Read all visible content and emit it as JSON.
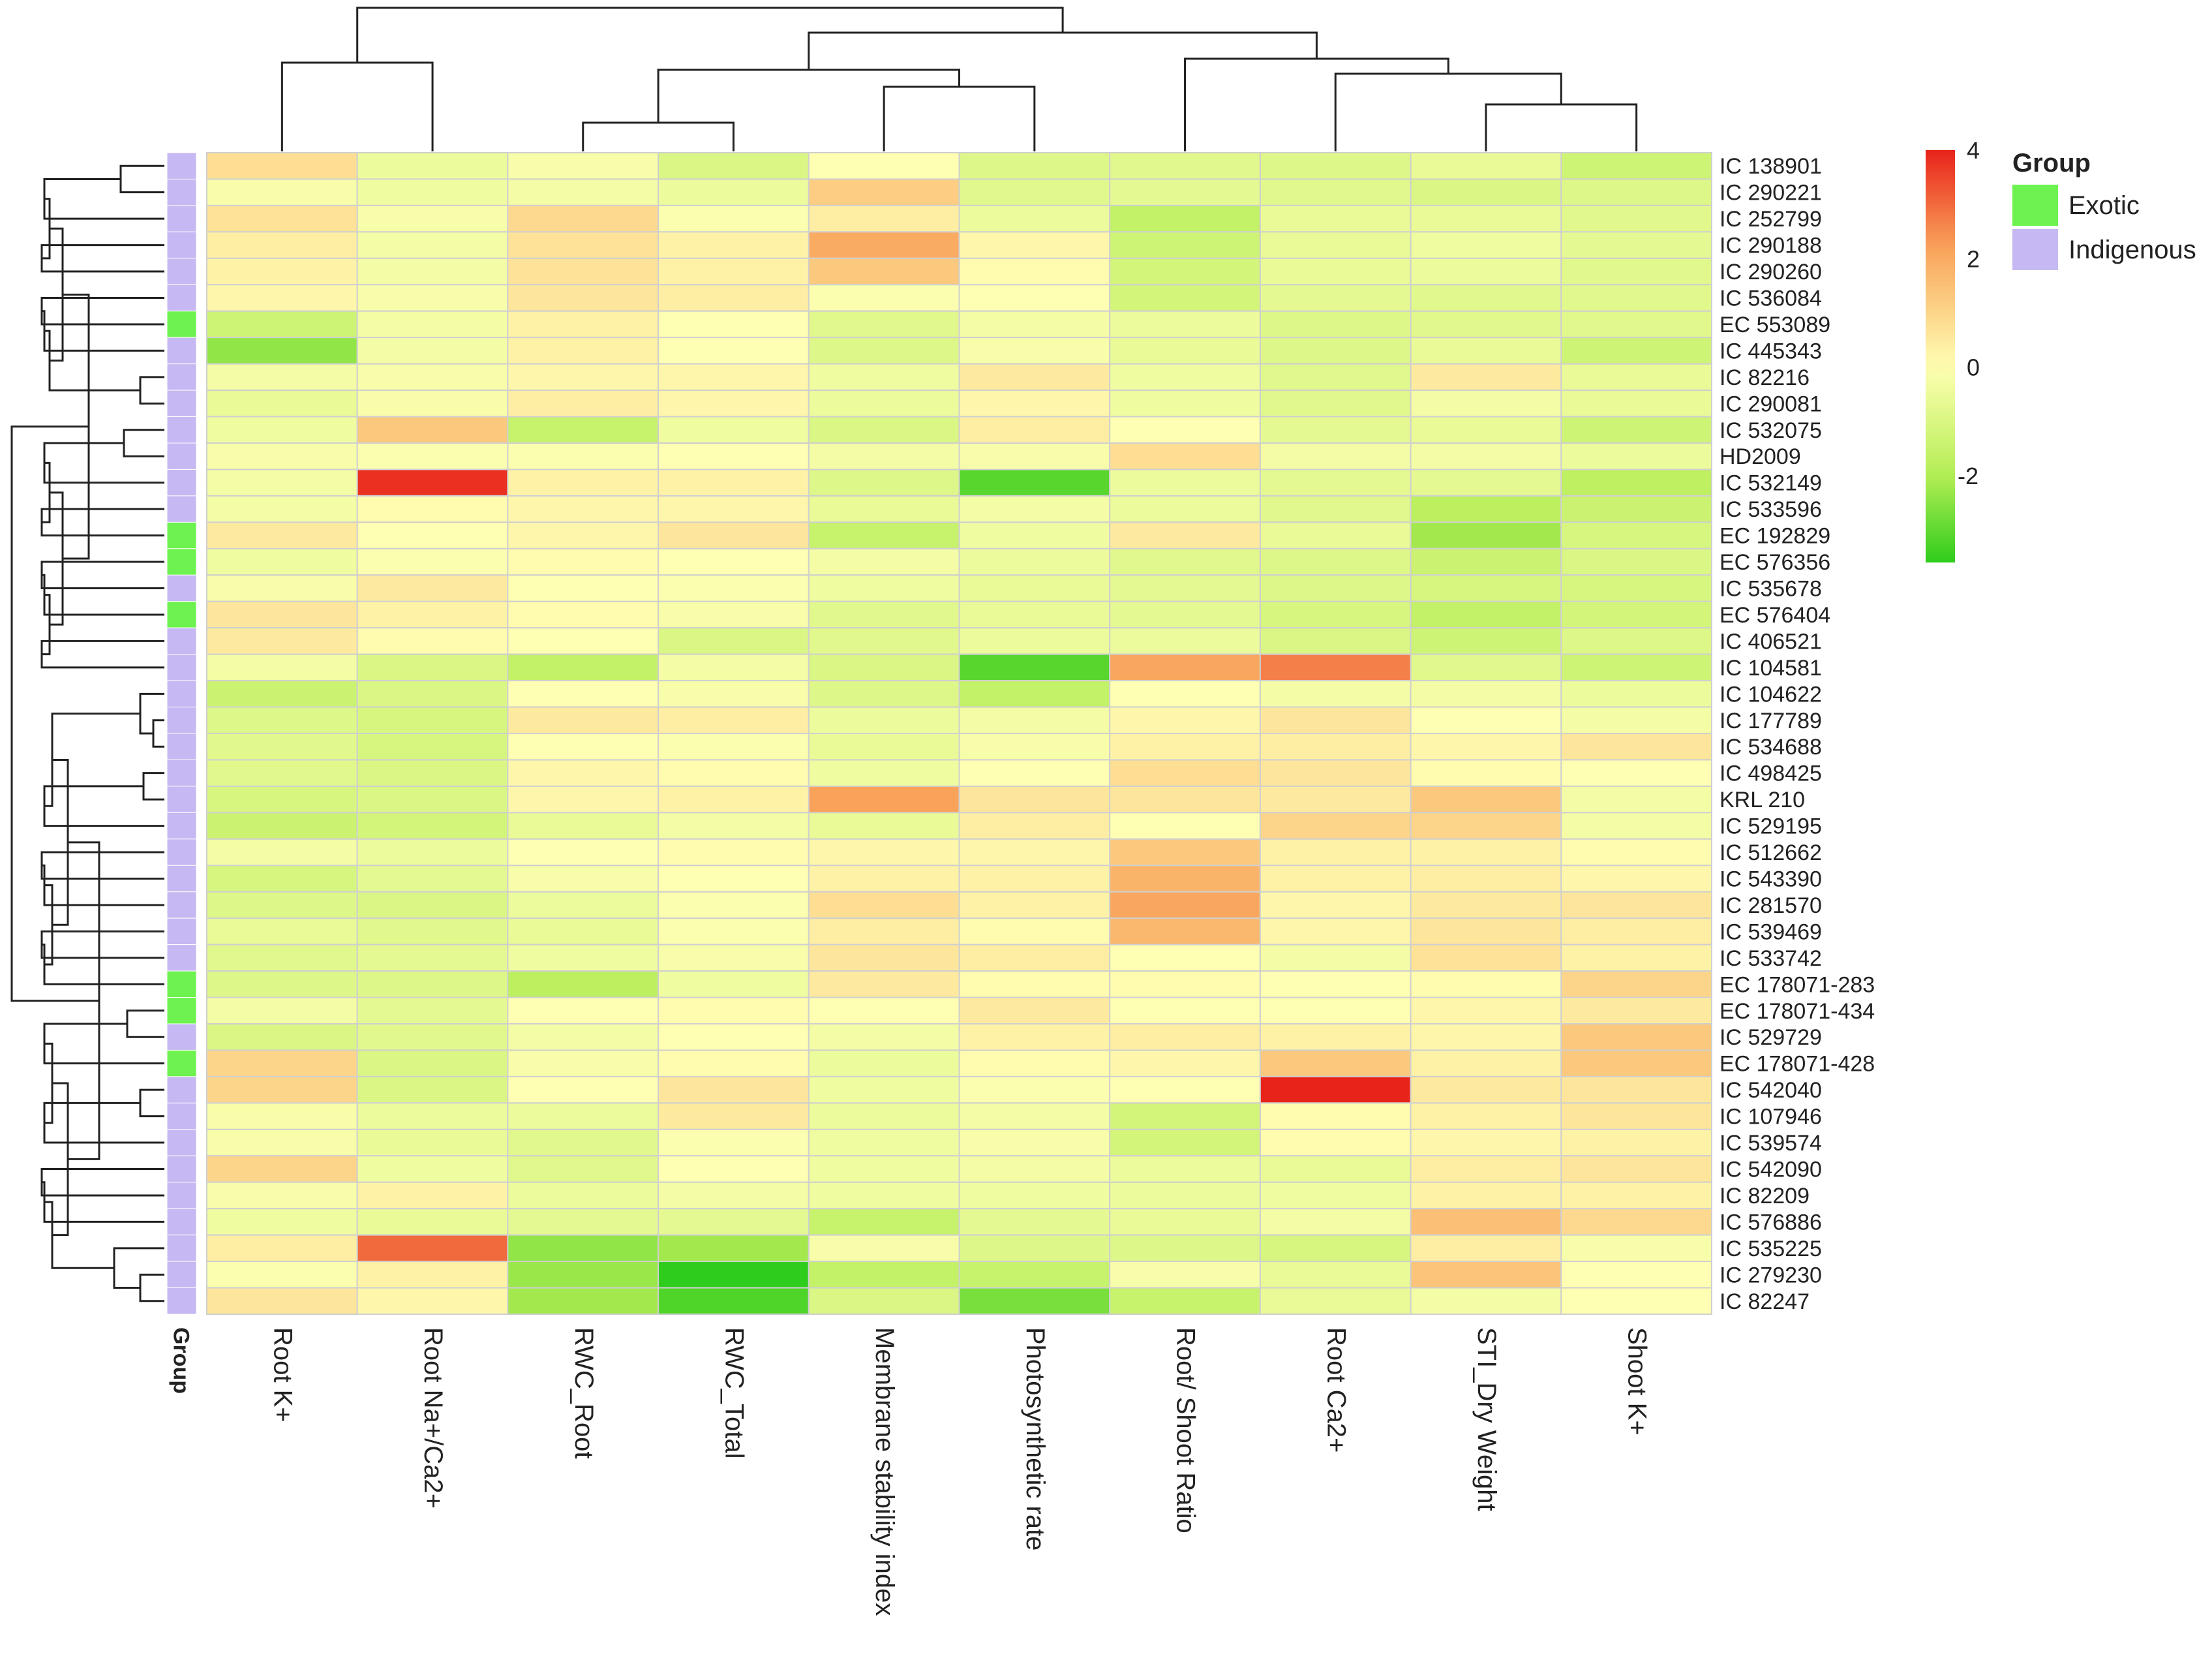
{
  "chart_data": {
    "type": "heatmap",
    "title": "",
    "columns": [
      "Root K+",
      "Root Na+/Ca2+",
      "RWC_Root",
      "RWC_Total",
      "Membrane stability index",
      "Photosynthetic rate",
      "Root/ Shoot Ratio",
      "Root Ca2+",
      "STI_Dry Weight",
      "Shoot K+"
    ],
    "rows": [
      {
        "name": "IC 138901",
        "group": "Indigenous",
        "values": [
          0.8,
          -0.5,
          -0.2,
          -1.0,
          0.0,
          -0.9,
          -0.8,
          -0.9,
          -0.6,
          -1.3
        ]
      },
      {
        "name": "IC 290221",
        "group": "Indigenous",
        "values": [
          -0.2,
          -0.4,
          -0.3,
          -0.5,
          1.2,
          -0.8,
          -0.7,
          -0.8,
          -1.0,
          -0.9
        ]
      },
      {
        "name": "IC 252799",
        "group": "Indigenous",
        "values": [
          0.7,
          -0.2,
          0.9,
          -0.1,
          0.4,
          -0.5,
          -1.6,
          -0.6,
          -0.6,
          -0.8
        ]
      },
      {
        "name": "IC 290188",
        "group": "Indigenous",
        "values": [
          0.4,
          -0.3,
          0.7,
          0.3,
          2.0,
          0.2,
          -1.3,
          -0.6,
          -0.4,
          -0.7
        ]
      },
      {
        "name": "IC 290260",
        "group": "Indigenous",
        "values": [
          0.3,
          -0.3,
          0.7,
          0.3,
          1.3,
          0.1,
          -1.2,
          -0.6,
          -0.5,
          -0.8
        ]
      },
      {
        "name": "IC 536084",
        "group": "Indigenous",
        "values": [
          0.2,
          -0.2,
          0.6,
          0.4,
          -0.1,
          0.0,
          -1.2,
          -0.7,
          -0.8,
          -0.8
        ]
      },
      {
        "name": "EC 553089",
        "group": "Exotic",
        "values": [
          -1.3,
          -0.3,
          0.3,
          0.0,
          -0.8,
          -0.3,
          -0.5,
          -0.9,
          -0.8,
          -0.8
        ]
      },
      {
        "name": "IC 445343",
        "group": "Indigenous",
        "values": [
          -2.4,
          -0.3,
          0.3,
          0.0,
          -0.9,
          -0.2,
          -0.6,
          -0.9,
          -0.6,
          -1.3
        ]
      },
      {
        "name": "IC 82216",
        "group": "Indigenous",
        "values": [
          -0.3,
          -0.2,
          0.2,
          0.2,
          -0.4,
          0.5,
          -0.4,
          -0.8,
          0.5,
          -0.6
        ]
      },
      {
        "name": "IC 290081",
        "group": "Indigenous",
        "values": [
          -0.6,
          -0.2,
          0.4,
          0.2,
          -0.5,
          0.2,
          -0.4,
          -0.8,
          -0.3,
          -0.6
        ]
      },
      {
        "name": "IC 532075",
        "group": "Indigenous",
        "values": [
          -0.4,
          1.3,
          -1.5,
          -0.4,
          -1.0,
          0.4,
          0.0,
          -0.7,
          -0.6,
          -1.3
        ]
      },
      {
        "name": "HD2009",
        "group": "Indigenous",
        "values": [
          -0.2,
          -0.1,
          -0.1,
          0.0,
          -0.3,
          -0.2,
          0.8,
          -0.3,
          -0.3,
          -0.5
        ]
      },
      {
        "name": "IC 532149",
        "group": "Indigenous",
        "values": [
          -0.3,
          3.8,
          0.3,
          0.3,
          -0.9,
          -3.1,
          -0.5,
          -0.7,
          -0.7,
          -1.7
        ]
      },
      {
        "name": "IC 533596",
        "group": "Indigenous",
        "values": [
          -0.3,
          0.1,
          0.2,
          0.2,
          -0.6,
          -0.3,
          -0.5,
          -0.8,
          -1.8,
          -1.4
        ]
      },
      {
        "name": "EC 192829",
        "group": "Exotic",
        "values": [
          0.5,
          0.0,
          0.2,
          0.6,
          -1.5,
          -0.4,
          0.5,
          -0.6,
          -2.2,
          -1.1
        ]
      },
      {
        "name": "EC 576356",
        "group": "Exotic",
        "values": [
          -0.4,
          -0.1,
          0.1,
          0.0,
          -0.3,
          -0.5,
          -0.8,
          -0.9,
          -1.4,
          -1.0
        ]
      },
      {
        "name": "IC 535678",
        "group": "Indigenous",
        "values": [
          -0.2,
          0.5,
          0.0,
          -0.1,
          -0.4,
          -0.6,
          -0.7,
          -0.9,
          -1.1,
          -1.1
        ]
      },
      {
        "name": "EC 576404",
        "group": "Exotic",
        "values": [
          0.6,
          0.3,
          0.1,
          -0.2,
          -0.8,
          -0.6,
          -0.7,
          -1.1,
          -1.6,
          -1.2
        ]
      },
      {
        "name": "IC 406521",
        "group": "Indigenous",
        "values": [
          0.5,
          0.1,
          0.0,
          -1.0,
          -0.8,
          -0.5,
          -0.5,
          -1.0,
          -1.3,
          -0.9
        ]
      },
      {
        "name": "IC 104581",
        "group": "Indigenous",
        "values": [
          -0.3,
          -1.0,
          -1.6,
          -0.3,
          -1.0,
          -3.1,
          2.1,
          2.7,
          -0.8,
          -1.3
        ]
      },
      {
        "name": "IC 104622",
        "group": "Indigenous",
        "values": [
          -1.4,
          -1.0,
          0.0,
          -0.2,
          -0.9,
          -1.6,
          0.0,
          -0.3,
          -0.3,
          -0.5
        ]
      },
      {
        "name": "IC 177789",
        "group": "Indigenous",
        "values": [
          -0.9,
          -1.1,
          0.5,
          0.4,
          -0.5,
          -0.3,
          0.2,
          0.6,
          0.0,
          -0.3
        ]
      },
      {
        "name": "IC 534688",
        "group": "Indigenous",
        "values": [
          -0.8,
          -1.1,
          0.0,
          -0.1,
          -0.6,
          -0.2,
          0.3,
          0.4,
          0.2,
          0.6
        ]
      },
      {
        "name": "IC 498425",
        "group": "Indigenous",
        "values": [
          -0.8,
          -1.0,
          0.2,
          0.1,
          -0.4,
          0.0,
          0.8,
          0.6,
          0.1,
          0.0
        ]
      },
      {
        "name": "KRL 210",
        "group": "Indigenous",
        "values": [
          -1.1,
          -1.0,
          0.2,
          0.3,
          2.2,
          0.6,
          0.6,
          0.5,
          1.3,
          -0.3
        ]
      },
      {
        "name": "IC 529195",
        "group": "Indigenous",
        "values": [
          -1.4,
          -1.2,
          -0.6,
          -0.3,
          -0.6,
          0.4,
          0.0,
          1.0,
          1.0,
          -0.3
        ]
      },
      {
        "name": "IC 512662",
        "group": "Indigenous",
        "values": [
          -0.3,
          -0.5,
          0.0,
          0.1,
          0.2,
          0.2,
          1.3,
          0.3,
          0.3,
          0.1
        ]
      },
      {
        "name": "IC 543390",
        "group": "Indigenous",
        "values": [
          -1.1,
          -0.7,
          -0.2,
          0.0,
          0.3,
          0.3,
          1.8,
          0.3,
          0.4,
          0.2
        ]
      },
      {
        "name": "IC 281570",
        "group": "Indigenous",
        "values": [
          -0.9,
          -1.0,
          -0.5,
          -0.1,
          0.8,
          0.3,
          2.1,
          0.2,
          0.5,
          0.6
        ]
      },
      {
        "name": "IC 539469",
        "group": "Indigenous",
        "values": [
          -0.6,
          -0.8,
          -0.6,
          -0.1,
          0.4,
          0.1,
          1.7,
          0.2,
          0.6,
          0.4
        ]
      },
      {
        "name": "IC 533742",
        "group": "Indigenous",
        "values": [
          -0.8,
          -0.7,
          -0.4,
          -0.2,
          0.6,
          0.4,
          0.0,
          -0.3,
          0.7,
          0.3
        ]
      },
      {
        "name": "EC 178071-283",
        "group": "Exotic",
        "values": [
          -0.9,
          -0.9,
          -1.8,
          -0.4,
          0.5,
          0.1,
          0.1,
          0.0,
          0.1,
          1.0
        ]
      },
      {
        "name": "EC 178071-434",
        "group": "Exotic",
        "values": [
          -0.3,
          -0.7,
          0.0,
          0.1,
          0.0,
          0.5,
          0.0,
          0.0,
          0.2,
          0.5
        ]
      },
      {
        "name": "IC 529729",
        "group": "Indigenous",
        "values": [
          -1.0,
          -0.8,
          -0.3,
          0.0,
          -0.3,
          0.3,
          0.4,
          0.3,
          0.2,
          1.3
        ]
      },
      {
        "name": "EC 178071-428",
        "group": "Exotic",
        "values": [
          1.0,
          -1.0,
          -0.2,
          0.1,
          -0.5,
          0.1,
          0.2,
          1.3,
          0.3,
          1.3
        ]
      },
      {
        "name": "IC 542040",
        "group": "Indigenous",
        "values": [
          1.0,
          -1.0,
          0.0,
          0.6,
          -0.4,
          -0.1,
          0.0,
          4.0,
          0.5,
          0.6
        ]
      },
      {
        "name": "IC 107946",
        "group": "Indigenous",
        "values": [
          -0.2,
          -0.5,
          -0.5,
          0.5,
          -0.5,
          -0.3,
          -1.2,
          0.1,
          0.3,
          0.6
        ]
      },
      {
        "name": "IC 539574",
        "group": "Indigenous",
        "values": [
          -0.2,
          -0.6,
          -0.8,
          -0.1,
          -0.4,
          -0.2,
          -1.2,
          0.1,
          0.2,
          0.3
        ]
      },
      {
        "name": "IC 542090",
        "group": "Indigenous",
        "values": [
          1.0,
          -0.4,
          -0.8,
          0.0,
          -0.4,
          -0.3,
          -0.5,
          -0.6,
          0.4,
          0.6
        ]
      },
      {
        "name": "IC 82209",
        "group": "Indigenous",
        "values": [
          -0.2,
          0.3,
          -0.5,
          -0.3,
          -0.4,
          -0.4,
          -0.5,
          -0.4,
          0.3,
          0.3
        ]
      },
      {
        "name": "IC 576886",
        "group": "Indigenous",
        "values": [
          -0.4,
          -0.6,
          -0.7,
          -0.7,
          -1.5,
          -0.7,
          -0.6,
          -0.3,
          1.5,
          0.9
        ]
      },
      {
        "name": "IC 535225",
        "group": "Indigenous",
        "values": [
          0.4,
          3.0,
          -2.4,
          -2.2,
          -0.2,
          -0.9,
          -0.9,
          -1.1,
          0.4,
          -0.2
        ]
      },
      {
        "name": "IC 279230",
        "group": "Indigenous",
        "values": [
          -0.1,
          0.3,
          -2.3,
          -3.6,
          -1.6,
          -1.5,
          -0.2,
          -0.6,
          1.4,
          0.0
        ]
      },
      {
        "name": "IC 82247",
        "group": "Indigenous",
        "values": [
          0.6,
          0.2,
          -2.2,
          -3.2,
          -1.0,
          -2.7,
          -1.5,
          -0.6,
          -0.3,
          0.0
        ]
      }
    ],
    "color_scale": {
      "min": -3.6,
      "max": 4.0,
      "low_color": "#2ECC1C",
      "mid_color": "#FFFFB3",
      "high_color": "#E8231A",
      "ticks": [
        4,
        2,
        0,
        -2
      ]
    },
    "annotation": {
      "label": "Group",
      "categories": [
        {
          "name": "Exotic",
          "color": "#6DF24F"
        },
        {
          "name": "Indigenous",
          "color": "#C6B8F2"
        }
      ]
    },
    "row_dendrogram": true,
    "col_dendrogram": true,
    "legend_position": "top-right"
  }
}
